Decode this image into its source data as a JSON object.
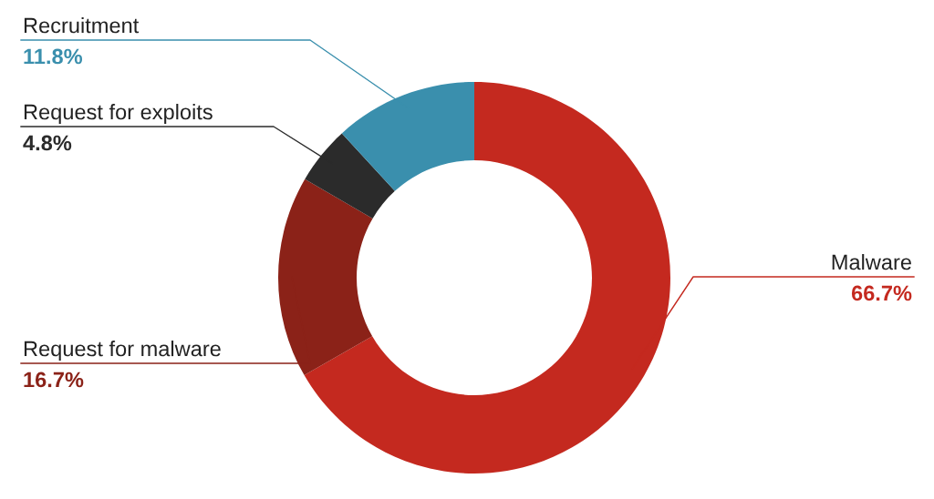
{
  "chart_data": {
    "type": "donut",
    "categories": [
      "Malware",
      "Request for malware",
      "Request for exploits",
      "Recruitment"
    ],
    "values": [
      66.7,
      16.7,
      4.8,
      11.8
    ],
    "value_labels": [
      "66.7%",
      "16.7%",
      "4.8%",
      "11.8%"
    ],
    "colors": [
      "#c4291f",
      "#8b2218",
      "#2b2b2b",
      "#3a8fad"
    ],
    "legend": false
  }
}
